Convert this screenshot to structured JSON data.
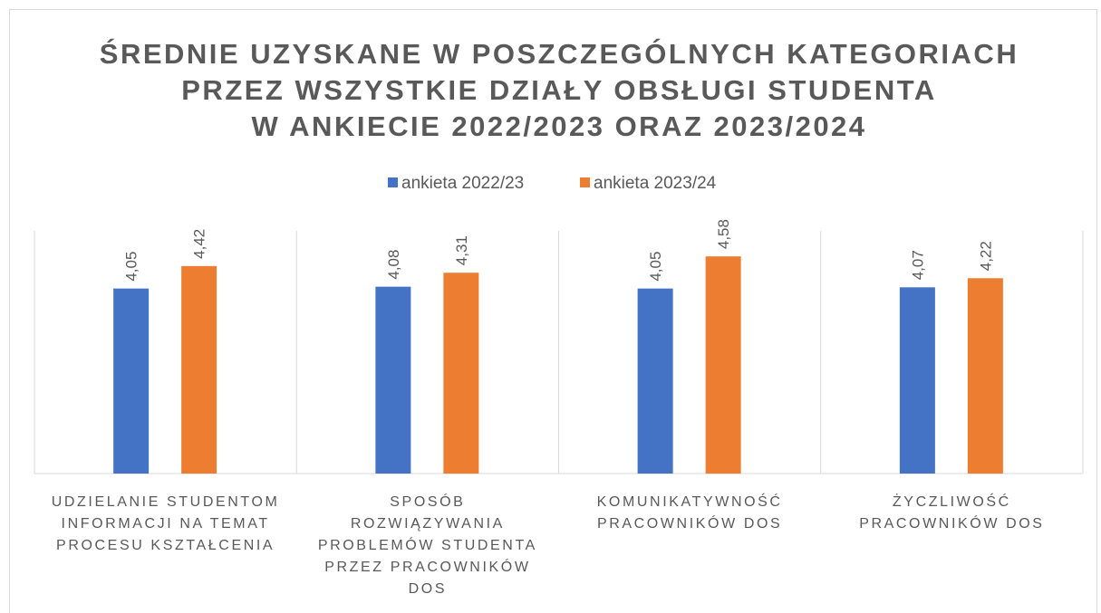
{
  "chart_data": {
    "type": "bar",
    "title": "ŚREDNIE UZYSKANE W POSZCZEGÓLNYCH KATEGORIACH\nPRZEZ WSZYSTKIE DZIAŁY OBSŁUGI STUDENTA\nW ANKIECIE 2022/2023 ORAZ 2023/2024",
    "categories": [
      "UDZIELANIE STUDENTOM\nINFORMACJI NA TEMAT\nPROCESU KSZTAŁCENIA",
      "SPOSÓB\nROZWIĄZYWANIA\nPROBLEMÓW STUDENTA\nPRZEZ PRACOWNIKÓW\nDOS",
      "KOMUNIKATYWNOŚĆ\nPRACOWNIKÓW DOS",
      "ŻYCZLIWOŚĆ\nPRACOWNIKÓW DOS"
    ],
    "series": [
      {
        "name": "ankieta 2022/23",
        "color": "#4472c4",
        "values": [
          4.05,
          4.08,
          4.05,
          4.07
        ],
        "value_labels": [
          "4,05",
          "4,08",
          "4,05",
          "4,07"
        ]
      },
      {
        "name": "ankieta 2023/24",
        "color": "#ed7d31",
        "values": [
          4.42,
          4.31,
          4.58,
          4.22
        ],
        "value_labels": [
          "4,42",
          "4,31",
          "4,58",
          "4,22"
        ]
      }
    ],
    "ylim": [
      1,
      5
    ],
    "legend": "top"
  }
}
